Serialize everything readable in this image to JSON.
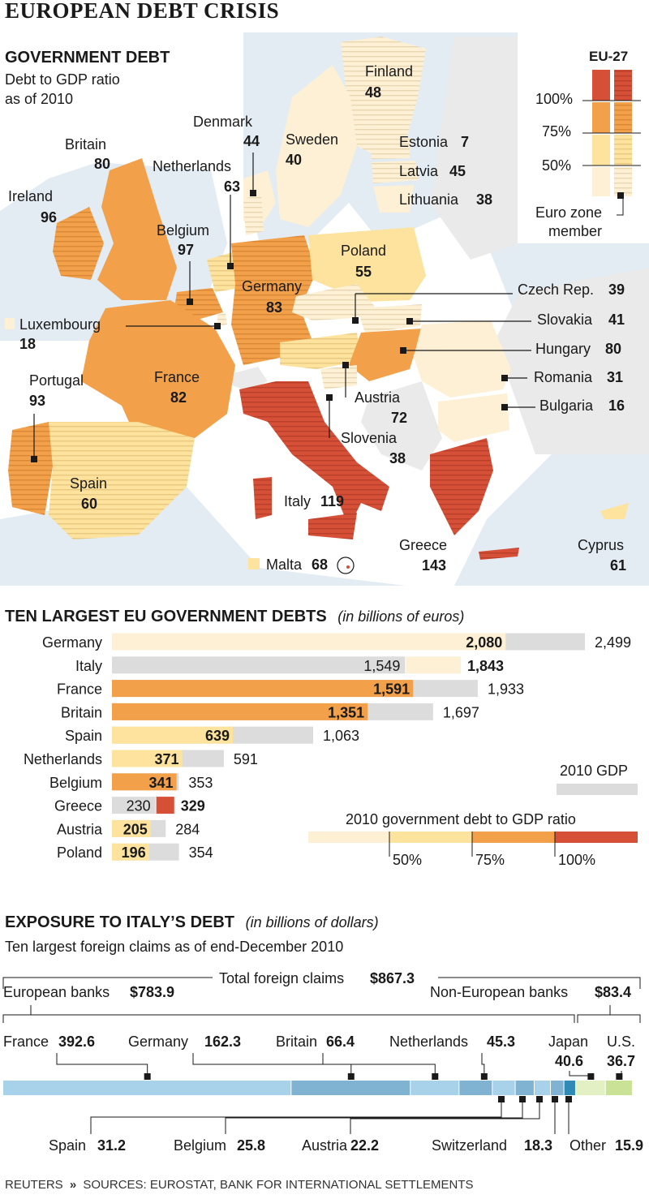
{
  "header": {
    "title": "EUROPEAN DEBT CRISIS"
  },
  "map": {
    "title": "GOVERNMENT DEBT",
    "subtitle_line1": "Debt to GDP ratio",
    "subtitle_line2": "as of 2010",
    "countries": [
      {
        "name": "Finland",
        "value": "48"
      },
      {
        "name": "Sweden",
        "value": "40"
      },
      {
        "name": "Denmark",
        "value": "44"
      },
      {
        "name": "Estonia",
        "value": "7"
      },
      {
        "name": "Latvia",
        "value": "45"
      },
      {
        "name": "Lithuania",
        "value": "38"
      },
      {
        "name": "Britain",
        "value": "80"
      },
      {
        "name": "Netherlands",
        "value": "63"
      },
      {
        "name": "Ireland",
        "value": "96"
      },
      {
        "name": "Belgium",
        "value": "97"
      },
      {
        "name": "Poland",
        "value": "55"
      },
      {
        "name": "Germany",
        "value": "83"
      },
      {
        "name": "Czech Rep.",
        "value": "39"
      },
      {
        "name": "Luxembourg",
        "value": "18"
      },
      {
        "name": "Slovakia",
        "value": "41"
      },
      {
        "name": "Hungary",
        "value": "80"
      },
      {
        "name": "Portugal",
        "value": "93"
      },
      {
        "name": "France",
        "value": "82"
      },
      {
        "name": "Romania",
        "value": "31"
      },
      {
        "name": "Austria",
        "value": "72"
      },
      {
        "name": "Bulgaria",
        "value": "16"
      },
      {
        "name": "Slovenia",
        "value": "38"
      },
      {
        "name": "Spain",
        "value": "60"
      },
      {
        "name": "Italy",
        "value": "119"
      },
      {
        "name": "Greece",
        "value": "143"
      },
      {
        "name": "Cyprus",
        "value": "61"
      },
      {
        "name": "Malta",
        "value": "68"
      }
    ],
    "legend": {
      "title": "EU-27",
      "ticks": [
        "100%",
        "75%",
        "50%"
      ],
      "euro_line1": "Euro zone",
      "euro_line2": "member"
    }
  },
  "colors": {
    "red": "#d64f37",
    "orange": "#f2a04a",
    "yellow": "#fde39d",
    "pale": "#fdf0d5",
    "gray": "#dcdcdc",
    "water": "#e3ecf3",
    "land_other": "#eaeaea",
    "blue_light": "#a8d2ea",
    "blue_mid": "#7fb3d1",
    "blue_dark": "#2f8ab8",
    "green_light": "#e3f0c4",
    "green_mid": "#c9e295"
  },
  "chart_data": [
    {
      "type": "bar",
      "title": "TEN LARGEST EU GOVERNMENT DEBTS",
      "unit_note": "(in billions of euros)",
      "categories": [
        "Germany",
        "Italy",
        "France",
        "Britain",
        "Spain",
        "Netherlands",
        "Belgium",
        "Greece",
        "Austria",
        "Poland"
      ],
      "series": [
        {
          "name": "Government debt",
          "values": [
            2080,
            1843,
            1591,
            1351,
            639,
            371,
            341,
            329,
            205,
            196
          ]
        },
        {
          "name": "2010 GDP",
          "values": [
            2499,
            1549,
            1933,
            1697,
            1063,
            591,
            353,
            230,
            284,
            354
          ]
        }
      ],
      "value_labels": {
        "debt": [
          "2,080",
          "1,843",
          "1,591",
          "1,351",
          "639",
          "371",
          "341",
          "329",
          "205",
          "196"
        ],
        "gdp": [
          "2,499",
          "1,549",
          "1,933",
          "1,697",
          "1,063",
          "591",
          "353",
          "230",
          "284",
          "354"
        ]
      },
      "ratio_band": [
        "pale",
        "pale",
        "orange",
        "orange",
        "yellow",
        "yellow",
        "orange",
        "red",
        "yellow",
        "yellow"
      ],
      "legend": {
        "gdp_label": "2010 GDP",
        "ratio_title": "2010 government debt to GDP ratio",
        "ratio_ticks": [
          "50%",
          "75%",
          "100%"
        ]
      }
    },
    {
      "type": "bar",
      "title": "EXPOSURE TO ITALY’S DEBT",
      "unit_note": "(in billions of dollars)",
      "subtitle": "Ten largest foreign claims as of end-December 2010",
      "total_label": "Total foreign claims",
      "total_value": "$867.3",
      "total": 867.3,
      "groups": [
        {
          "label": "European banks",
          "value_label": "$783.9",
          "value": 783.9
        },
        {
          "label": "Non-European banks",
          "value_label": "$83.4",
          "value": 83.4
        }
      ],
      "segments": [
        {
          "name": "France",
          "value": 392.6,
          "label": "392.6",
          "group": "european"
        },
        {
          "name": "Germany",
          "value": 162.3,
          "label": "162.3",
          "group": "european"
        },
        {
          "name": "Britain",
          "value": 66.4,
          "label": "66.4",
          "group": "european"
        },
        {
          "name": "Netherlands",
          "value": 45.3,
          "label": "45.3",
          "group": "european"
        },
        {
          "name": "Spain",
          "value": 31.2,
          "label": "31.2",
          "group": "european"
        },
        {
          "name": "Belgium",
          "value": 25.8,
          "label": "25.8",
          "group": "european"
        },
        {
          "name": "Austria",
          "value": 22.2,
          "label": "22.2",
          "group": "european"
        },
        {
          "name": "Switzerland",
          "value": 18.3,
          "label": "18.3",
          "group": "european"
        },
        {
          "name": "Other",
          "value": 15.9,
          "label": "15.9",
          "group": "european"
        },
        {
          "name": "Japan",
          "value": 40.6,
          "label": "40.6",
          "group": "non-european"
        },
        {
          "name": "U.S.",
          "value": 36.7,
          "label": "36.7",
          "group": "non-european"
        }
      ]
    }
  ],
  "footer": {
    "source": "REUTERS",
    "sources": "SOURCES: EUROSTAT, BANK FOR INTERNATIONAL SETTLEMENTS"
  }
}
